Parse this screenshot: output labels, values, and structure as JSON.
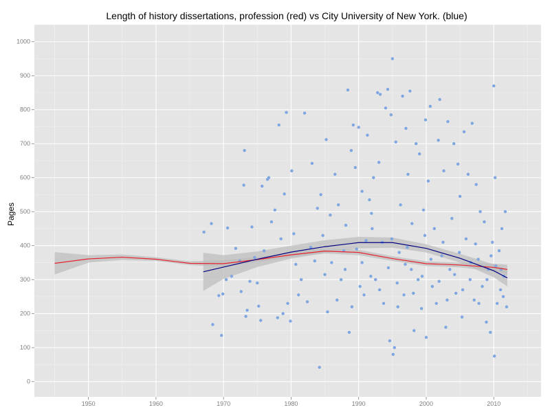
{
  "chart_data": {
    "type": "scatter",
    "title": "Length of history dissertations, profession (red) vs City University of New York. (blue)",
    "xlabel": "",
    "ylabel": "Pages",
    "xlim": [
      1942,
      2017
    ],
    "ylim": [
      -45,
      1050
    ],
    "x_ticks": [
      1950,
      1960,
      1970,
      1980,
      1990,
      2000,
      2010
    ],
    "x_tick_labels": [
      "1950",
      "1960",
      "1970",
      "1980",
      "1990",
      "2000",
      "2010"
    ],
    "y_ticks": [
      0,
      100,
      200,
      300,
      400,
      500,
      600,
      700,
      800,
      900,
      1000
    ],
    "y_tick_labels": [
      "0",
      "100",
      "200",
      "300",
      "400",
      "500",
      "600",
      "700",
      "800",
      "900",
      "1000"
    ],
    "grid": true,
    "background_color": "#e5e5e5",
    "point_color": "#7ea6e0",
    "series": [
      {
        "type": "points",
        "color": "#7ea6e0",
        "points": [
          [
            1967.1,
            440
          ],
          [
            1968.2,
            465
          ],
          [
            1968.4,
            168
          ],
          [
            1969.3,
            253
          ],
          [
            1969.7,
            136
          ],
          [
            1969.9,
            258
          ],
          [
            1970.4,
            300
          ],
          [
            1970.6,
            452
          ],
          [
            1971.2,
            310
          ],
          [
            1971.8,
            392
          ],
          [
            1972.4,
            355
          ],
          [
            1972.6,
            265
          ],
          [
            1973.0,
            578
          ],
          [
            1973.1,
            680
          ],
          [
            1973.3,
            192
          ],
          [
            1973.5,
            210
          ],
          [
            1973.9,
            295
          ],
          [
            1974.2,
            455
          ],
          [
            1974.6,
            365
          ],
          [
            1975.0,
            290
          ],
          [
            1975.2,
            222
          ],
          [
            1975.5,
            180
          ],
          [
            1975.7,
            575
          ],
          [
            1976.0,
            385
          ],
          [
            1976.5,
            595
          ],
          [
            1976.7,
            600
          ],
          [
            1977.1,
            470
          ],
          [
            1977.6,
            505
          ],
          [
            1978.0,
            188
          ],
          [
            1978.2,
            755
          ],
          [
            1978.5,
            420
          ],
          [
            1978.8,
            200
          ],
          [
            1979.0,
            552
          ],
          [
            1979.3,
            792
          ],
          [
            1979.5,
            230
          ],
          [
            1979.9,
            178
          ],
          [
            1980.1,
            620
          ],
          [
            1980.4,
            435
          ],
          [
            1980.7,
            345
          ],
          [
            1981.1,
            255
          ],
          [
            1981.5,
            300
          ],
          [
            1982.0,
            790
          ],
          [
            1982.4,
            235
          ],
          [
            1982.9,
            395
          ],
          [
            1983.1,
            642
          ],
          [
            1983.5,
            355
          ],
          [
            1983.9,
            510
          ],
          [
            1984.2,
            42
          ],
          [
            1984.4,
            550
          ],
          [
            1984.7,
            430
          ],
          [
            1985.0,
            315
          ],
          [
            1985.2,
            712
          ],
          [
            1985.4,
            205
          ],
          [
            1985.8,
            490
          ],
          [
            1986.0,
            350
          ],
          [
            1986.5,
            610
          ],
          [
            1987.0,
            520
          ],
          [
            1987.4,
            300
          ],
          [
            1987.8,
            385
          ],
          [
            1988.1,
            460
          ],
          [
            1988.4,
            858
          ],
          [
            1988.6,
            145
          ],
          [
            1988.9,
            680
          ],
          [
            1989.2,
            755
          ],
          [
            1989.5,
            630
          ],
          [
            1990.0,
            748
          ],
          [
            1990.2,
            280
          ],
          [
            1990.5,
            560
          ],
          [
            1990.8,
            255
          ],
          [
            1991.1,
            415
          ],
          [
            1991.3,
            725
          ],
          [
            1991.6,
            535
          ],
          [
            1991.9,
            495
          ],
          [
            1992.2,
            600
          ],
          [
            1992.5,
            300
          ],
          [
            1992.8,
            850
          ],
          [
            1993.0,
            645
          ],
          [
            1993.2,
            845
          ],
          [
            1993.5,
            410
          ],
          [
            1993.7,
            230
          ],
          [
            1994.0,
            805
          ],
          [
            1994.3,
            860
          ],
          [
            1994.6,
            120
          ],
          [
            1994.8,
            785
          ],
          [
            1995.0,
            950
          ],
          [
            1995.1,
            80
          ],
          [
            1995.3,
            100
          ],
          [
            1995.5,
            705
          ],
          [
            1995.8,
            220
          ],
          [
            1996.0,
            380
          ],
          [
            1996.2,
            520
          ],
          [
            1996.5,
            840
          ],
          [
            1996.7,
            255
          ],
          [
            1997.0,
            745
          ],
          [
            1997.3,
            610
          ],
          [
            1997.6,
            855
          ],
          [
            1997.9,
            465
          ],
          [
            1998.2,
            150
          ],
          [
            1998.5,
            700
          ],
          [
            1998.8,
            300
          ],
          [
            1999.0,
            670
          ],
          [
            1999.3,
            215
          ],
          [
            1999.6,
            505
          ],
          [
            1999.9,
            770
          ],
          [
            2000.0,
            130
          ],
          [
            2000.3,
            590
          ],
          [
            2000.6,
            810
          ],
          [
            2000.9,
            280
          ],
          [
            2001.2,
            450
          ],
          [
            2001.5,
            230
          ],
          [
            2001.8,
            710
          ],
          [
            2002.0,
            830
          ],
          [
            2002.3,
            370
          ],
          [
            2002.6,
            620
          ],
          [
            2002.9,
            160
          ],
          [
            2003.2,
            765
          ],
          [
            2003.5,
            330
          ],
          [
            2003.8,
            480
          ],
          [
            2004.1,
            700
          ],
          [
            2004.4,
            260
          ],
          [
            2004.7,
            640
          ],
          [
            2005.0,
            545
          ],
          [
            2005.3,
            190
          ],
          [
            2005.6,
            735
          ],
          [
            2005.9,
            420
          ],
          [
            2006.2,
            610
          ],
          [
            2006.5,
            300
          ],
          [
            2006.8,
            760
          ],
          [
            2007.1,
            240
          ],
          [
            2007.4,
            580
          ],
          [
            2007.7,
            360
          ],
          [
            2008.0,
            500
          ],
          [
            2008.3,
            280
          ],
          [
            2008.6,
            470
          ],
          [
            2008.9,
            175
          ],
          [
            2009.2,
            330
          ],
          [
            2009.5,
            145
          ],
          [
            2009.8,
            410
          ],
          [
            2010.0,
            870
          ],
          [
            2010.2,
            600
          ],
          [
            2010.1,
            75
          ],
          [
            2010.5,
            230
          ],
          [
            2010.8,
            385
          ],
          [
            2011.0,
            270
          ],
          [
            2011.2,
            450
          ],
          [
            2011.5,
            310
          ],
          [
            2011.7,
            500
          ],
          [
            2011.9,
            220
          ],
          [
            1990.5,
            350
          ],
          [
            1991.8,
            310
          ],
          [
            1993.1,
            270
          ],
          [
            1994.4,
            335
          ],
          [
            1995.7,
            290
          ],
          [
            1996.9,
            345
          ],
          [
            1998.1,
            260
          ],
          [
            1999.4,
            310
          ],
          [
            2000.7,
            360
          ],
          [
            2001.9,
            295
          ],
          [
            2003.1,
            240
          ],
          [
            2004.2,
            315
          ],
          [
            2005.4,
            270
          ],
          [
            2006.6,
            350
          ],
          [
            2007.8,
            230
          ],
          [
            2009.0,
            300
          ],
          [
            2010.3,
            340
          ],
          [
            2011.4,
            250
          ],
          [
            1989.7,
            390
          ],
          [
            1992.0,
            450
          ],
          [
            1994.9,
            420
          ],
          [
            1997.2,
            395
          ],
          [
            1999.8,
            430
          ],
          [
            2002.5,
            410
          ],
          [
            2004.9,
            380
          ],
          [
            2007.3,
            405
          ],
          [
            2009.6,
            370
          ],
          [
            2011.1,
            330
          ],
          [
            1986.8,
            240
          ],
          [
            1988.0,
            330
          ],
          [
            1989.0,
            220
          ],
          [
            1997.8,
            330
          ]
        ]
      },
      {
        "type": "smooth",
        "color": "#e8202b",
        "ribbon_color": "#bebebe",
        "x": [
          1945,
          1950,
          1955,
          1960,
          1965,
          1970,
          1975,
          1980,
          1985,
          1990,
          1995,
          2000,
          2005,
          2010,
          2012
        ],
        "y": [
          348,
          361,
          366,
          360,
          348,
          347,
          359,
          373,
          384,
          380,
          362,
          347,
          343,
          336,
          330
        ],
        "ribbon_low": [
          315,
          350,
          358,
          355,
          343,
          337,
          352,
          366,
          377,
          372,
          355,
          340,
          336,
          325,
          316
        ],
        "ribbon_high": [
          381,
          372,
          374,
          366,
          354,
          357,
          366,
          380,
          391,
          388,
          369,
          354,
          350,
          347,
          344
        ]
      },
      {
        "type": "smooth",
        "color": "#000080",
        "ribbon_color": "#bebebe",
        "x": [
          1967,
          1970,
          1975,
          1980,
          1985,
          1990,
          1995,
          2000,
          2005,
          2010,
          2012
        ],
        "y": [
          323,
          337,
          360,
          381,
          397,
          409,
          409,
          392,
          363,
          326,
          305
        ],
        "ribbon_low": [
          267,
          302,
          337,
          362,
          378,
          392,
          394,
          380,
          350,
          307,
          280
        ],
        "ribbon_high": [
          379,
          372,
          383,
          400,
          416,
          426,
          424,
          404,
          376,
          345,
          330
        ]
      }
    ]
  }
}
